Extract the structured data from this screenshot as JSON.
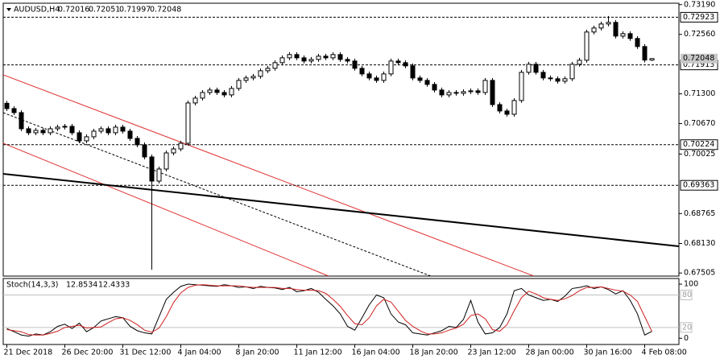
{
  "chart_data": [
    {
      "type": "candlestick",
      "title": "AUDUSD,H4",
      "categories": [
        "21 Dec 2018",
        null,
        null,
        null,
        null,
        null,
        null,
        null,
        "26 Dec 20:00",
        null,
        null,
        null,
        null,
        null,
        null,
        null,
        "31 Dec 12:00",
        null,
        null,
        null,
        null,
        null,
        null,
        null,
        "4 Jan 04:00",
        null,
        null,
        null,
        null,
        null,
        null,
        null,
        "8 Jan 20:00",
        null,
        null,
        null,
        null,
        null,
        null,
        null,
        "11 Jan 12:00",
        null,
        null,
        null,
        null,
        null,
        null,
        null,
        "16 Jan 04:00",
        null,
        null,
        null,
        null,
        null,
        null,
        null,
        "18 Jan 20:00",
        null,
        null,
        null,
        null,
        null,
        null,
        null,
        "23 Jan 12:00",
        null,
        null,
        null,
        null,
        null,
        null,
        null,
        "28 Jan 00:00",
        null,
        null,
        null,
        null,
        null,
        null,
        null,
        "30 Jan 16:00",
        null,
        null,
        null,
        null,
        null,
        null,
        null,
        "4 Feb 08:00",
        null
      ],
      "open": [
        0.711,
        0.70988,
        0.70903,
        0.70561,
        0.70476,
        0.70527,
        0.70476,
        0.70561,
        0.70595,
        0.70612,
        0.70476,
        0.70305,
        0.70391,
        0.7051,
        0.70561,
        0.70476,
        0.70595,
        0.7051,
        0.70356,
        0.7022,
        0.69964,
        0.69452,
        0.69708,
        0.70049,
        0.70134,
        0.70254,
        0.71107,
        0.7121,
        0.71329,
        0.71381,
        0.71329,
        0.71278,
        0.71415,
        0.71585,
        0.71637,
        0.71671,
        0.7179,
        0.71841,
        0.71961,
        0.72063,
        0.72132,
        0.72063,
        0.71995,
        0.72029,
        0.72098,
        0.72063,
        0.72132,
        0.72029,
        0.71995,
        0.71841,
        0.71722,
        0.71637,
        0.71585,
        0.71722,
        0.71995,
        0.71961,
        0.71893,
        0.71637,
        0.71585,
        0.715,
        0.71381,
        0.71278,
        0.71329,
        0.71312,
        0.71346,
        0.71364,
        0.71329,
        0.71585,
        0.71073,
        0.70937,
        0.70868,
        0.71159,
        0.71756,
        0.71927,
        0.71756,
        0.71637,
        0.7162,
        0.71568,
        0.7162,
        0.71927,
        0.72012,
        0.7261,
        0.72695,
        0.7278,
        0.72814,
        0.72524,
        0.72575,
        0.72473,
        0.72302,
        0.72016
      ],
      "high": [
        0.7115,
        0.71038,
        0.70953,
        0.70611,
        0.70577,
        0.70577,
        0.70611,
        0.70645,
        0.70662,
        0.70662,
        0.70526,
        0.70441,
        0.7056,
        0.70611,
        0.70611,
        0.70645,
        0.70645,
        0.7056,
        0.70406,
        0.7027,
        0.70014,
        0.69758,
        0.70099,
        0.70184,
        0.70304,
        0.71157,
        0.7126,
        0.71379,
        0.71431,
        0.71431,
        0.71379,
        0.71465,
        0.71635,
        0.71687,
        0.71721,
        0.7184,
        0.71891,
        0.72011,
        0.72113,
        0.72182,
        0.72182,
        0.72113,
        0.72079,
        0.72148,
        0.72148,
        0.72182,
        0.72182,
        0.72079,
        0.72045,
        0.71891,
        0.71772,
        0.71687,
        0.71772,
        0.72045,
        0.72045,
        0.72011,
        0.71943,
        0.71687,
        0.71635,
        0.7155,
        0.71431,
        0.71379,
        0.71379,
        0.71396,
        0.71414,
        0.71414,
        0.71635,
        0.71635,
        0.71123,
        0.70987,
        0.71209,
        0.71806,
        0.71977,
        0.71977,
        0.71806,
        0.71687,
        0.7167,
        0.7167,
        0.71977,
        0.72062,
        0.7266,
        0.72745,
        0.7283,
        0.7295,
        0.72864,
        0.72625,
        0.72625,
        0.72523,
        0.72352,
        0.72051
      ],
      "low": [
        0.70938,
        0.70853,
        0.70511,
        0.70426,
        0.70426,
        0.70426,
        0.70426,
        0.70511,
        0.70545,
        0.70426,
        0.70255,
        0.70255,
        0.70341,
        0.7046,
        0.70426,
        0.70426,
        0.7046,
        0.70306,
        0.7017,
        0.69914,
        0.67574,
        0.69402,
        0.69658,
        0.69999,
        0.70084,
        0.70204,
        0.71057,
        0.7116,
        0.71279,
        0.71279,
        0.71228,
        0.71228,
        0.71365,
        0.71535,
        0.71587,
        0.71621,
        0.7174,
        0.71791,
        0.71911,
        0.72013,
        0.72013,
        0.71945,
        0.71945,
        0.71979,
        0.72013,
        0.72013,
        0.71979,
        0.71945,
        0.71791,
        0.71672,
        0.71587,
        0.71535,
        0.71535,
        0.71672,
        0.71911,
        0.71843,
        0.71587,
        0.71535,
        0.7145,
        0.71331,
        0.71228,
        0.71228,
        0.71262,
        0.71262,
        0.71296,
        0.71279,
        0.71279,
        0.71023,
        0.70887,
        0.70818,
        0.70818,
        0.71109,
        0.71706,
        0.71706,
        0.71587,
        0.7157,
        0.71518,
        0.71518,
        0.7157,
        0.71877,
        0.71962,
        0.7256,
        0.72645,
        0.7273,
        0.72474,
        0.72474,
        0.72423,
        0.72252,
        0.71966,
        0.71997
      ],
      "close": [
        0.70988,
        0.70903,
        0.70561,
        0.70476,
        0.70527,
        0.70476,
        0.70561,
        0.70595,
        0.70612,
        0.70476,
        0.70305,
        0.70391,
        0.7051,
        0.70561,
        0.70476,
        0.70595,
        0.7051,
        0.70356,
        0.7022,
        0.69964,
        0.69452,
        0.69708,
        0.70049,
        0.70134,
        0.70254,
        0.71107,
        0.7121,
        0.71329,
        0.71381,
        0.71329,
        0.71278,
        0.71415,
        0.71585,
        0.71637,
        0.71671,
        0.7179,
        0.71841,
        0.71961,
        0.72063,
        0.72132,
        0.72063,
        0.71995,
        0.72029,
        0.72098,
        0.72063,
        0.72132,
        0.72029,
        0.71995,
        0.71841,
        0.71722,
        0.71637,
        0.71585,
        0.71722,
        0.71995,
        0.71961,
        0.71893,
        0.71637,
        0.71585,
        0.715,
        0.71381,
        0.71278,
        0.71329,
        0.71312,
        0.71346,
        0.71364,
        0.71329,
        0.71585,
        0.71073,
        0.70937,
        0.70868,
        0.71159,
        0.71756,
        0.71927,
        0.71756,
        0.71637,
        0.7162,
        0.71568,
        0.7162,
        0.71927,
        0.72012,
        0.7261,
        0.72695,
        0.7278,
        0.72814,
        0.72524,
        0.72575,
        0.72473,
        0.72302,
        0.72016,
        0.72048
      ],
      "up_color": "#ffffff",
      "down_color": "#000000",
      "wick_color": "#000000",
      "ylim": [
        0.6744,
        0.7322
      ],
      "yticks": [
        {
          "value": 0.7319,
          "label": "0.73190"
        },
        {
          "value": 0.7256,
          "label": "0.72560"
        },
        {
          "value": 0.713,
          "label": "0.71300"
        },
        {
          "value": 0.7067,
          "label": "0.70670"
        },
        {
          "value": 0.70025,
          "label": "0.70025"
        },
        {
          "value": 0.68765,
          "label": "0.68765"
        },
        {
          "value": 0.6813,
          "label": "0.68130"
        },
        {
          "value": 0.67505,
          "label": "0.67505"
        }
      ],
      "levels": [
        0.72923,
        0.71913,
        0.70224,
        0.69363
      ]
    },
    {
      "type": "line",
      "title": "Stoch(14,3,3)",
      "series": [
        {
          "color": "#000000",
          "values": [
            18,
            12,
            6,
            4,
            8,
            6,
            12,
            22,
            26,
            18,
            28,
            12,
            20,
            32,
            36,
            40,
            38,
            22,
            14,
            10,
            8,
            40,
            72,
            85,
            96,
            100,
            99,
            98,
            97,
            96,
            99,
            97,
            94,
            95,
            92,
            96,
            94,
            93,
            90,
            94,
            86,
            88,
            92,
            85,
            72,
            60,
            45,
            22,
            15,
            38,
            62,
            80,
            75,
            45,
            30,
            25,
            10,
            8,
            6,
            10,
            14,
            22,
            20,
            35,
            70,
            30,
            8,
            10,
            20,
            45,
            88,
            92,
            80,
            75,
            70,
            72,
            68,
            78,
            92,
            94,
            97,
            92,
            95,
            90,
            82,
            88,
            70,
            45,
            6,
            12.8534
          ]
        },
        {
          "color": "#d02020",
          "values": [
            16,
            14,
            12,
            7,
            6,
            6,
            9,
            13,
            20,
            22,
            24,
            19,
            20,
            21,
            29,
            36,
            38,
            33,
            25,
            15,
            11,
            19,
            40,
            66,
            84,
            94,
            98,
            99,
            98,
            97,
            97,
            97,
            97,
            95,
            94,
            94,
            94,
            94,
            92,
            92,
            90,
            89,
            89,
            88,
            83,
            72,
            59,
            42,
            27,
            25,
            38,
            60,
            72,
            67,
            50,
            33,
            22,
            14,
            8,
            8,
            10,
            15,
            19,
            26,
            42,
            45,
            36,
            16,
            13,
            25,
            51,
            75,
            87,
            82,
            75,
            72,
            70,
            73,
            79,
            88,
            94,
            94,
            95,
            92,
            89,
            87,
            80,
            68,
            40,
            12.4333
          ]
        }
      ],
      "ylim": [
        -10,
        109
      ],
      "yticks": [
        0,
        100
      ],
      "levels": [
        20,
        80
      ]
    }
  ]
}
